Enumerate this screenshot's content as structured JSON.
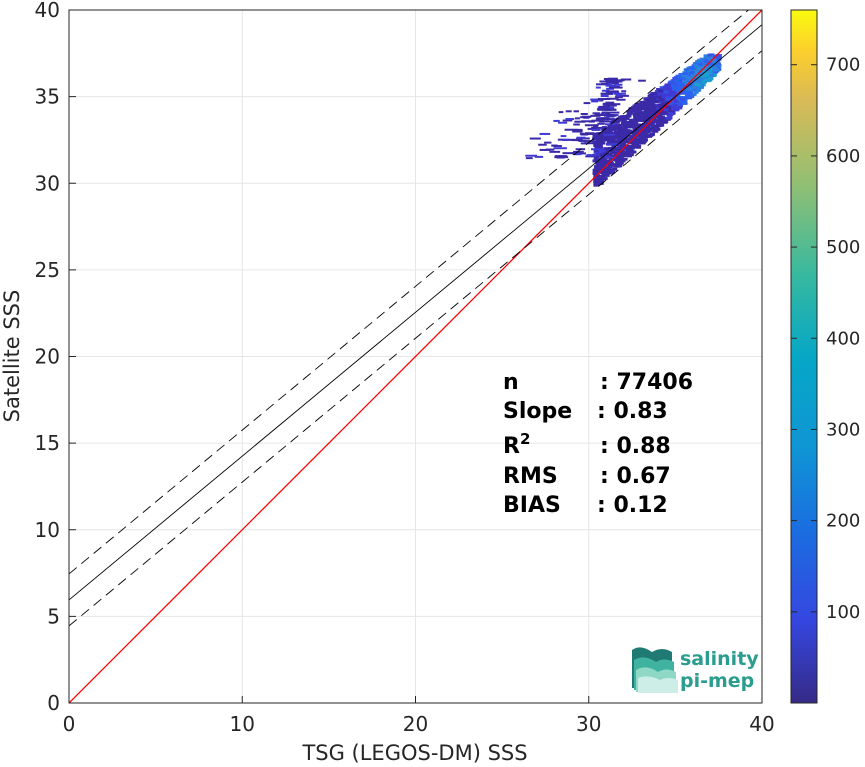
{
  "chart_data": {
    "type": "heatmap",
    "title": "",
    "xlabel": "TSG (LEGOS-DM) SSS",
    "ylabel": "Satellite SSS",
    "xlim": [
      0,
      40
    ],
    "ylim": [
      0,
      40
    ],
    "xticks": [
      "0",
      "10",
      "20",
      "30",
      "40"
    ],
    "yticks": [
      "0",
      "5",
      "10",
      "15",
      "20",
      "25",
      "30",
      "35",
      "40"
    ],
    "grid": true,
    "colorbar": {
      "range": [
        0,
        760
      ],
      "ticks": [
        "100",
        "200",
        "300",
        "400",
        "500",
        "600",
        "700"
      ],
      "colormap": "parula"
    },
    "lines": [
      {
        "name": "1:1",
        "color": "#ff0000",
        "style": "solid",
        "points": [
          [
            0,
            0
          ],
          [
            40,
            40
          ]
        ]
      },
      {
        "name": "fit",
        "color": "#000000",
        "style": "solid",
        "points": [
          [
            0,
            5.95
          ],
          [
            40,
            39.15
          ]
        ]
      },
      {
        "name": "fit + 1.5 std",
        "color": "#000000",
        "style": "dashed",
        "points": [
          [
            0,
            7.45
          ],
          [
            40,
            40.65
          ]
        ]
      },
      {
        "name": "fit - 1.5 std",
        "color": "#000000",
        "style": "dashed",
        "points": [
          [
            0,
            4.45
          ],
          [
            40,
            37.65
          ]
        ]
      }
    ],
    "density_cluster": {
      "x_range": [
        24.5,
        37.4
      ],
      "y_range": [
        29.9,
        37.5
      ],
      "peak": [
        36.5,
        36.2
      ]
    },
    "stats": [
      {
        "label": "n",
        "value": ": 77406"
      },
      {
        "label": "Slope",
        "value": ": 0.83"
      },
      {
        "label": "R",
        "sup": "2",
        "value": ": 0.88"
      },
      {
        "label": "RMS",
        "value": ": 0.67"
      },
      {
        "label": "BIAS",
        "value": ": 0.12"
      }
    ]
  },
  "logo": {
    "line1": "salinity",
    "line2": "pi-mep"
  }
}
